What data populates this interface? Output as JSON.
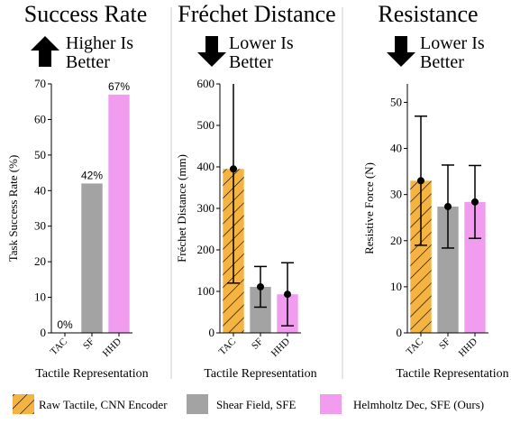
{
  "chart_data": [
    {
      "type": "bar",
      "title": "Success Rate",
      "subtitle": "Higher Is Better",
      "arrow": "up",
      "categories": [
        "TAC",
        "SF",
        "HHD"
      ],
      "values": [
        0,
        42,
        67
      ],
      "value_labels": [
        "0%",
        "42%",
        "67%"
      ],
      "colors": [
        "#f5b342",
        "#a3a3a3",
        "#f29cf0"
      ],
      "hatch": [
        true,
        false,
        false
      ],
      "y_label": "Task Success Rate (%)",
      "x_label": "Tactile Representation",
      "ylim": [
        0,
        70
      ],
      "yticks": [
        0,
        10,
        20,
        30,
        40,
        50,
        60,
        70
      ]
    },
    {
      "type": "bar",
      "title": "Fréchet Distance",
      "subtitle": "Lower Is Better",
      "arrow": "down",
      "categories": [
        "TAC",
        "SF",
        "HHD"
      ],
      "values": [
        395,
        111,
        93
      ],
      "errors": [
        275,
        49,
        76
      ],
      "colors": [
        "#f5b342",
        "#a3a3a3",
        "#f29cf0"
      ],
      "hatch": [
        true,
        false,
        false
      ],
      "y_label": "Fréchet Distance (mm)",
      "x_label": "Tactile Representation",
      "ylim": [
        0,
        600
      ],
      "yticks": [
        0,
        100,
        200,
        300,
        400,
        500,
        600
      ]
    },
    {
      "type": "bar",
      "title": "Resistance",
      "subtitle": "Lower Is Better",
      "arrow": "down",
      "categories": [
        "TAC",
        "SF",
        "HHD"
      ],
      "values": [
        33,
        27.4,
        28.4
      ],
      "errors": [
        14,
        9,
        7.9
      ],
      "colors": [
        "#f5b342",
        "#a3a3a3",
        "#f29cf0"
      ],
      "hatch": [
        true,
        false,
        false
      ],
      "y_label": "Resistive Force (N)",
      "x_label": "Tactile Representation",
      "ylim": [
        0,
        54
      ],
      "yticks": [
        0,
        10,
        20,
        30,
        40,
        50
      ]
    }
  ],
  "legend": [
    {
      "name": "Raw Tactile, CNN Encoder",
      "color": "#f5b342",
      "hatch": true
    },
    {
      "name": "Shear Field, SFE",
      "color": "#a3a3a3",
      "hatch": false
    },
    {
      "name": "Helmholtz Dec, SFE (Ours)",
      "color": "#f29cf0",
      "hatch": false
    }
  ]
}
